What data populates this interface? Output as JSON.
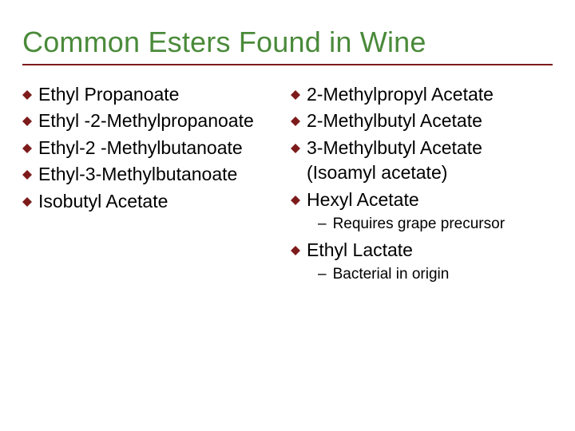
{
  "title": {
    "text": "Common Esters Found in Wine",
    "color": "#4a8a3a",
    "fontsize": 36,
    "underline_color": "#7d1b1b",
    "underline_thickness": 2
  },
  "bullet_style": {
    "color": "#7d1b1b",
    "shape": "diamond",
    "size": 12
  },
  "body_text": {
    "fontsize": 23,
    "color": "#000000",
    "sub_fontsize": 19
  },
  "left_column": [
    {
      "text": "Ethyl Propanoate"
    },
    {
      "text": "Ethyl -2-Methylpropanoate"
    },
    {
      "text": "Ethyl-2 -Methylbutanoate"
    },
    {
      "text": "Ethyl-3-Methylbutanoate"
    },
    {
      "text": "Isobutyl Acetate"
    }
  ],
  "right_column": [
    {
      "text": "2-Methylpropyl Acetate"
    },
    {
      "text": "2-Methylbutyl Acetate"
    },
    {
      "text": "3-Methylbutyl Acetate",
      "continuation": "(Isoamyl acetate)"
    },
    {
      "text": "Hexyl Acetate",
      "sub": "Requires grape precursor"
    },
    {
      "text": "Ethyl Lactate",
      "sub": "Bacterial in origin"
    }
  ],
  "background_color": "#ffffff"
}
